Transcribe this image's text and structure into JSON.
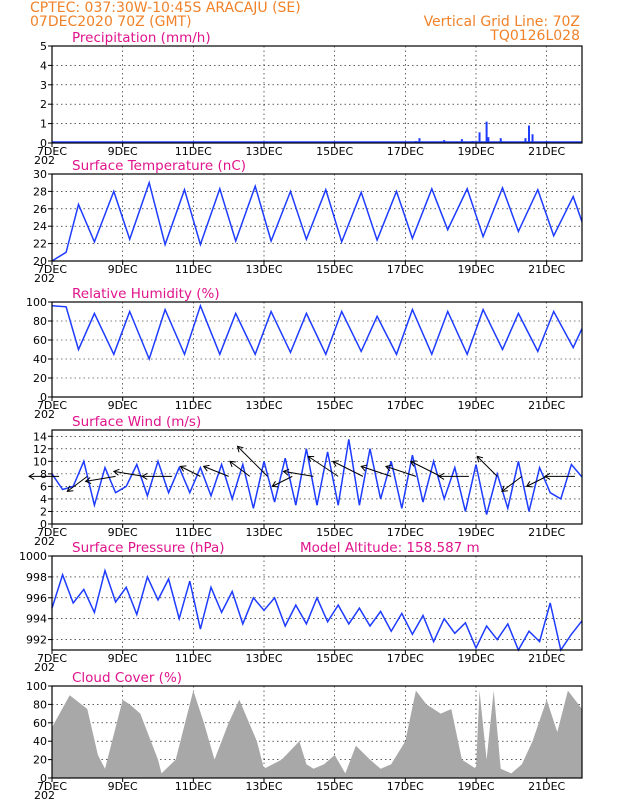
{
  "header": {
    "left_line1": "CPTEC:   037:30W-10:45S  ARACAJU (SE)",
    "left_line2": "07DEC2020 70Z (GMT)",
    "right_line1": "Vertical Grid Line: 70Z",
    "right_line2": "TQ0126L028"
  },
  "colors": {
    "header": "#f0822a",
    "title": "#e0148c",
    "series": "#1e3cff",
    "cloud": "#a8a8a8"
  },
  "x_ticks": [
    "7DEC",
    "9DEC",
    "11DEC",
    "13DEC",
    "15DEC",
    "17DEC",
    "19DEC",
    "21DEC"
  ],
  "x_tick_positions": [
    0,
    2,
    4,
    6,
    8,
    10,
    12,
    14
  ],
  "x_range": [
    0,
    15
  ],
  "stray_label": "202",
  "panels": [
    {
      "id": "precip",
      "title": "Precipitation (mm/h)",
      "extra": "",
      "ylim": [
        0,
        5
      ],
      "yticks": [
        "0",
        "1",
        "2",
        "3",
        "4",
        "5"
      ]
    },
    {
      "id": "temp",
      "title": "Surface Temperature (nC)",
      "extra": "",
      "ylim": [
        20,
        30
      ],
      "yticks": [
        "20",
        "22",
        "24",
        "26",
        "28",
        "30"
      ]
    },
    {
      "id": "rh",
      "title": "Relative Humidity (%)",
      "extra": "",
      "ylim": [
        0,
        100
      ],
      "yticks": [
        "0",
        "20",
        "40",
        "60",
        "80",
        "100"
      ]
    },
    {
      "id": "wind",
      "title": "Surface Wind (m/s)",
      "extra": "",
      "ylim": [
        0,
        15
      ],
      "yticks": [
        "0",
        "2",
        "4",
        "6",
        "8",
        "10",
        "12",
        "14"
      ]
    },
    {
      "id": "press",
      "title": "Surface Pressure (hPa)",
      "extra": "Model Altitude: 158.587 m",
      "ylim": [
        991,
        1000
      ],
      "yticks": [
        "992",
        "994",
        "996",
        "998",
        "1000"
      ]
    },
    {
      "id": "cloud",
      "title": "Cloud Cover (%)",
      "extra": "",
      "ylim": [
        0,
        100
      ],
      "yticks": [
        "0",
        "20",
        "40",
        "60",
        "80",
        "100"
      ]
    }
  ],
  "chart_data": [
    {
      "type": "bar",
      "title": "Precipitation (mm/h)",
      "x_units": "days since 7DEC 00Z",
      "ylim": [
        0,
        5
      ],
      "x": [
        3.2,
        8.6,
        9.4,
        10.3,
        10.4,
        11.0,
        11.1,
        11.6,
        11.9,
        12.1,
        12.3,
        12.35,
        12.7,
        13.0,
        13.4,
        13.5,
        13.6,
        14.0,
        14.2
      ],
      "values": [
        0.05,
        0.05,
        0.05,
        0.1,
        0.25,
        0.08,
        0.15,
        0.2,
        0.1,
        0.55,
        1.1,
        0.3,
        0.25,
        0.08,
        0.25,
        0.9,
        0.45,
        0.1,
        0.05
      ]
    },
    {
      "type": "line",
      "title": "Surface Temperature (nC)",
      "x_units": "days since 7DEC 00Z",
      "ylim": [
        20,
        30
      ],
      "x": [
        0,
        0.4,
        0.75,
        1.2,
        1.75,
        2.2,
        2.75,
        3.2,
        3.75,
        4.2,
        4.75,
        5.2,
        5.75,
        6.2,
        6.75,
        7.2,
        7.75,
        8.2,
        8.75,
        9.2,
        9.75,
        10.2,
        10.75,
        11.2,
        11.75,
        12.2,
        12.75,
        13.2,
        13.75,
        14.2,
        14.75,
        15
      ],
      "values": [
        20,
        21,
        26.5,
        22.2,
        28,
        22.5,
        29,
        21.9,
        28.2,
        21.9,
        28.3,
        22.3,
        28.6,
        22.3,
        28,
        22.5,
        28.2,
        22.2,
        27.9,
        22.4,
        28,
        22.6,
        28.3,
        23.6,
        28.3,
        22.8,
        28.4,
        23.4,
        28.2,
        22.9,
        27.4,
        24.5
      ]
    },
    {
      "type": "line",
      "title": "Relative Humidity (%)",
      "x_units": "days since 7DEC 00Z",
      "ylim": [
        0,
        100
      ],
      "x": [
        0,
        0.4,
        0.75,
        1.2,
        1.75,
        2.2,
        2.75,
        3.2,
        3.75,
        4.2,
        4.75,
        5.2,
        5.75,
        6.2,
        6.75,
        7.2,
        7.75,
        8.2,
        8.75,
        9.2,
        9.75,
        10.2,
        10.75,
        11.2,
        11.75,
        12.2,
        12.75,
        13.2,
        13.75,
        14.2,
        14.75,
        15
      ],
      "values": [
        96,
        95,
        50,
        88,
        45,
        90,
        40,
        92,
        45,
        96,
        45,
        88,
        45,
        90,
        47,
        88,
        45,
        90,
        48,
        85,
        45,
        92,
        45,
        90,
        45,
        92,
        50,
        88,
        48,
        90,
        52,
        72
      ]
    },
    {
      "type": "line",
      "title": "Surface Wind (m/s)",
      "x_units": "days since 7DEC 00Z",
      "ylim": [
        0,
        15
      ],
      "x": [
        0,
        0.3,
        0.6,
        0.9,
        1.2,
        1.5,
        1.8,
        2.1,
        2.4,
        2.7,
        3.0,
        3.3,
        3.6,
        3.9,
        4.2,
        4.5,
        4.8,
        5.1,
        5.4,
        5.7,
        6.0,
        6.3,
        6.6,
        6.9,
        7.2,
        7.5,
        7.8,
        8.1,
        8.4,
        8.7,
        9.0,
        9.3,
        9.6,
        9.9,
        10.2,
        10.5,
        10.8,
        11.1,
        11.4,
        11.7,
        12.0,
        12.3,
        12.6,
        12.9,
        13.2,
        13.5,
        13.8,
        14.1,
        14.4,
        14.7,
        15
      ],
      "values": [
        8,
        5.5,
        6,
        10,
        3,
        9,
        5,
        6,
        9.5,
        4.5,
        10,
        5,
        9,
        5,
        9,
        4.5,
        9.5,
        4,
        9.5,
        2.5,
        10,
        3.5,
        10.5,
        3,
        12,
        3,
        11.5,
        3,
        13.5,
        3,
        12,
        4,
        10,
        2.5,
        11,
        3.5,
        10,
        4,
        9,
        2,
        9.5,
        1.5,
        8,
        2.5,
        10,
        2,
        9,
        5,
        4,
        9.5,
        7.5
      ],
      "vectors": [
        {
          "x": 0.2,
          "u": -3,
          "v": 0
        },
        {
          "x": 1.0,
          "u": -2,
          "v": -1.5
        },
        {
          "x": 1.8,
          "u": -3,
          "v": -0.5
        },
        {
          "x": 2.6,
          "u": -3,
          "v": 0.5
        },
        {
          "x": 3.4,
          "u": -3,
          "v": 0
        },
        {
          "x": 4.2,
          "u": -2,
          "v": 1
        },
        {
          "x": 5.0,
          "u": -2.5,
          "v": 1
        },
        {
          "x": 5.6,
          "u": -2,
          "v": 1.5
        },
        {
          "x": 6.1,
          "u": -3,
          "v": 3
        },
        {
          "x": 6.8,
          "u": -2,
          "v": -1
        },
        {
          "x": 7.4,
          "u": -3,
          "v": 0.5
        },
        {
          "x": 8.1,
          "u": -3,
          "v": 2
        },
        {
          "x": 8.8,
          "u": -3,
          "v": 1.5
        },
        {
          "x": 9.6,
          "u": -3,
          "v": 1
        },
        {
          "x": 10.3,
          "u": -3,
          "v": 1
        },
        {
          "x": 11.0,
          "u": -3,
          "v": 1.5
        },
        {
          "x": 11.8,
          "u": -3,
          "v": 0
        },
        {
          "x": 12.6,
          "u": -2,
          "v": 2
        },
        {
          "x": 13.3,
          "u": -2,
          "v": -1.5
        },
        {
          "x": 14.0,
          "u": -2,
          "v": -1
        },
        {
          "x": 14.8,
          "u": -3,
          "v": 0
        }
      ]
    },
    {
      "type": "line",
      "title": "Surface Pressure (hPa)",
      "x_units": "days since 7DEC 00Z",
      "ylim": [
        991,
        1000
      ],
      "x": [
        0,
        0.3,
        0.6,
        0.9,
        1.2,
        1.5,
        1.8,
        2.1,
        2.4,
        2.7,
        3.0,
        3.3,
        3.6,
        3.9,
        4.2,
        4.5,
        4.8,
        5.1,
        5.4,
        5.7,
        6.0,
        6.3,
        6.6,
        6.9,
        7.2,
        7.5,
        7.8,
        8.1,
        8.4,
        8.7,
        9.0,
        9.3,
        9.6,
        9.9,
        10.2,
        10.5,
        10.8,
        11.1,
        11.4,
        11.7,
        12.0,
        12.3,
        12.6,
        12.9,
        13.2,
        13.5,
        13.8,
        14.1,
        14.4,
        14.7,
        15
      ],
      "values": [
        995,
        998.2,
        995.5,
        996.8,
        994.6,
        998.6,
        995.6,
        997,
        994.4,
        998,
        995.8,
        997.8,
        994,
        997.6,
        993,
        997,
        994.6,
        996.6,
        993.5,
        996,
        994.8,
        996,
        993.3,
        995.3,
        993.5,
        996,
        993.7,
        995.3,
        993.5,
        995,
        993.3,
        994.7,
        992.8,
        994.5,
        992.5,
        994.3,
        991.8,
        994,
        992.6,
        993.6,
        991.2,
        993.3,
        992,
        993.5,
        991,
        992.8,
        991.8,
        995.5,
        990.8,
        992.5,
        993.8
      ]
    },
    {
      "type": "area",
      "title": "Cloud Cover (%)",
      "x_units": "days since 7DEC 00Z",
      "ylim": [
        0,
        100
      ],
      "x": [
        0,
        0.5,
        1,
        1.3,
        1.5,
        2,
        2.2,
        2.5,
        3,
        3.1,
        3.5,
        4,
        4.3,
        4.6,
        5,
        5.3,
        5.8,
        6,
        6.5,
        7,
        7.2,
        7.4,
        7.7,
        8,
        8.3,
        8.6,
        9,
        9.3,
        9.6,
        10,
        10.3,
        10.6,
        11,
        11.3,
        11.6,
        12,
        12.1,
        12.3,
        12.5,
        12.7,
        13,
        13.3,
        13.6,
        14,
        14.3,
        14.6,
        15
      ],
      "values": [
        55,
        90,
        75,
        25,
        10,
        85,
        80,
        70,
        20,
        5,
        20,
        95,
        60,
        20,
        60,
        85,
        40,
        10,
        20,
        40,
        15,
        10,
        15,
        25,
        5,
        35,
        20,
        10,
        15,
        40,
        95,
        80,
        70,
        75,
        20,
        10,
        95,
        20,
        95,
        10,
        5,
        15,
        40,
        85,
        50,
        95,
        75
      ]
    }
  ]
}
